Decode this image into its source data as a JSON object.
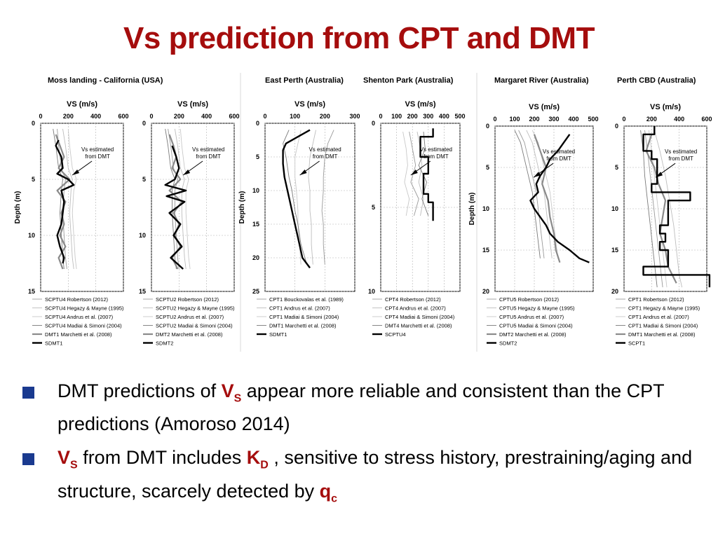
{
  "slide": {
    "title": "Vs prediction from CPT and DMT",
    "bullets": [
      {
        "parts": [
          {
            "text": "DMT predictions of ",
            "style": "normal"
          },
          {
            "text": "V",
            "style": "red",
            "sub": "S"
          },
          {
            "text": " appear more reliable and consistent than the CPT predictions (Amoroso 2014)",
            "style": "normal"
          }
        ]
      },
      {
        "parts": [
          {
            "text": "V",
            "style": "red",
            "sub": "S"
          },
          {
            "text": " from DMT includes ",
            "style": "normal"
          },
          {
            "text": "K",
            "style": "red",
            "sub": "D"
          },
          {
            "text": " , sensitive to stress history, prestraining/aging and structure, scarcely detected by ",
            "style": "normal"
          },
          {
            "text": "q",
            "style": "red",
            "sub": "c"
          }
        ]
      }
    ]
  },
  "colors": {
    "title": "#a50d0d",
    "bullet": "#1a3a8f",
    "highlight": "#a50d0d"
  },
  "chart_data": [
    {
      "type": "line",
      "site": "Moss landing - California (USA)",
      "xlabel": "VS (m/s)",
      "ylabel": "Depth (m)",
      "xlim": [
        0,
        600
      ],
      "xticks": [
        0,
        200,
        400,
        600
      ],
      "ylim": [
        0,
        15
      ],
      "yticks": [
        0,
        5,
        10,
        15
      ],
      "annotation": "Vs estimated from DMT",
      "series": [
        {
          "name": "SCPTU4 Robertson (2012)",
          "depth": [
            0.5,
            2,
            4,
            5,
            6,
            8,
            10,
            12,
            13
          ],
          "vs": [
            120,
            130,
            150,
            180,
            170,
            160,
            170,
            180,
            190
          ]
        },
        {
          "name": "SCPTU4 Hegazy & Mayne (1995)",
          "depth": [
            0.5,
            2,
            4,
            5,
            6,
            8,
            10,
            12,
            13
          ],
          "vs": [
            160,
            180,
            200,
            230,
            220,
            210,
            220,
            230,
            240
          ]
        },
        {
          "name": "SCPTU4 Andrus et al. (2007)",
          "depth": [
            0.5,
            2,
            4,
            5,
            6,
            8,
            10,
            12,
            13
          ],
          "vs": [
            200,
            210,
            230,
            260,
            240,
            230,
            240,
            250,
            260
          ]
        },
        {
          "name": "SCPTU4 Madiai & Simoni (2004)",
          "depth": [
            0.5,
            2,
            4,
            5,
            6,
            8,
            10,
            12,
            13
          ],
          "vs": [
            90,
            110,
            130,
            160,
            150,
            140,
            150,
            160,
            170
          ]
        },
        {
          "name": "DMT1 Marchetti et al. (2008)",
          "depth": [
            1,
            2,
            3,
            4,
            5,
            6,
            7,
            8,
            9,
            10,
            11,
            12,
            13
          ],
          "vs": [
            110,
            140,
            170,
            130,
            210,
            120,
            180,
            150,
            170,
            140,
            180,
            130,
            160
          ]
        },
        {
          "name": "SDMT1",
          "depth": [
            1.5,
            2,
            3,
            4,
            4.5,
            5,
            5.5,
            6,
            7,
            8,
            9,
            10,
            11,
            12,
            12.5
          ],
          "vs": [
            130,
            110,
            150,
            160,
            120,
            200,
            240,
            150,
            170,
            160,
            150,
            120,
            140,
            170,
            160
          ]
        }
      ]
    },
    {
      "type": "line",
      "site": "",
      "xlabel": "VS (m/s)",
      "ylabel": "",
      "xlim": [
        0,
        600
      ],
      "xticks": [
        0,
        200,
        400,
        600
      ],
      "ylim": [
        0,
        15
      ],
      "yticks": [
        0,
        5,
        10,
        15
      ],
      "annotation": "Vs estimated from DMT",
      "series": [
        {
          "name": "SCPTU2 Robertson (2012)",
          "depth": [
            0.5,
            2,
            4,
            5,
            6,
            8,
            10,
            12,
            13
          ],
          "vs": [
            120,
            140,
            160,
            190,
            170,
            170,
            180,
            190,
            200
          ]
        },
        {
          "name": "SCPTU2 Hegazy & Mayne (1995)",
          "depth": [
            0.5,
            2,
            4,
            5,
            6,
            8,
            10,
            12,
            13
          ],
          "vs": [
            170,
            190,
            210,
            240,
            220,
            220,
            230,
            240,
            250
          ]
        },
        {
          "name": "SCPTU2 Andrus et al. (2007)",
          "depth": [
            0.5,
            2,
            4,
            5,
            6,
            8,
            10,
            12,
            13
          ],
          "vs": [
            210,
            220,
            240,
            270,
            250,
            250,
            260,
            270,
            280
          ]
        },
        {
          "name": "SCPTU2 Madiai & Simoni (2004)",
          "depth": [
            0.5,
            2,
            4,
            5,
            6,
            8,
            10,
            12,
            13
          ],
          "vs": [
            100,
            120,
            140,
            170,
            150,
            150,
            160,
            170,
            180
          ]
        },
        {
          "name": "DMT2 Marchetti et al. (2008)",
          "depth": [
            1,
            2,
            3,
            4,
            5,
            6,
            7,
            8,
            9,
            10,
            11,
            12,
            13
          ],
          "vs": [
            130,
            160,
            180,
            150,
            210,
            130,
            220,
            160,
            200,
            170,
            210,
            150,
            190
          ]
        },
        {
          "name": "SDMT2",
          "depth": [
            2,
            3,
            4,
            5,
            5.5,
            6,
            6.5,
            7,
            8,
            9,
            10,
            11,
            12,
            13
          ],
          "vs": [
            150,
            180,
            200,
            170,
            100,
            250,
            110,
            240,
            130,
            210,
            160,
            220,
            140,
            230
          ]
        }
      ]
    },
    {
      "type": "line",
      "site": "East Perth (Australia)",
      "xlabel": "VS (m/s)",
      "ylabel": "Depth (m)",
      "xlim": [
        0,
        300
      ],
      "xticks": [
        0,
        100,
        200,
        300
      ],
      "ylim": [
        0,
        25
      ],
      "yticks": [
        0,
        5,
        10,
        15,
        20,
        25
      ],
      "annotation": "Vs estimated from DMT",
      "series": [
        {
          "name": "CPT1 Bouckovalas et al. (1989)",
          "depth": [
            1,
            3,
            5,
            8,
            10,
            13,
            15,
            18,
            21
          ],
          "vs": [
            230,
            210,
            200,
            195,
            195,
            190,
            195,
            195,
            200
          ]
        },
        {
          "name": "CPT1 Andrus et al. (2007)",
          "depth": [
            1,
            3,
            5,
            8,
            10,
            13,
            15,
            18,
            21
          ],
          "vs": [
            170,
            160,
            150,
            145,
            150,
            150,
            155,
            155,
            160
          ]
        },
        {
          "name": "CPT1 Madiai & Simoni (2004)",
          "depth": [
            1,
            3,
            5,
            8,
            10,
            13,
            15,
            18,
            21
          ],
          "vs": [
            120,
            110,
            100,
            100,
            105,
            110,
            110,
            115,
            120
          ]
        },
        {
          "name": "DMT1 Marchetti et al. (2008)",
          "depth": [
            1,
            3,
            5,
            8,
            10,
            13,
            15,
            18,
            21
          ],
          "vs": [
            80,
            60,
            70,
            80,
            90,
            100,
            110,
            120,
            140
          ]
        },
        {
          "name": "SDMT1",
          "depth": [
            1,
            2,
            3,
            4,
            6,
            8,
            10,
            12,
            14,
            16,
            18,
            20,
            21.5
          ],
          "vs": [
            150,
            110,
            70,
            60,
            60,
            65,
            75,
            85,
            95,
            105,
            115,
            125,
            150
          ]
        }
      ]
    },
    {
      "type": "line",
      "site": "Shenton Park (Australia)",
      "xlabel": "VS (m/s)",
      "ylabel": "",
      "xlim": [
        0,
        500
      ],
      "xticks": [
        0,
        100,
        200,
        300,
        400,
        500
      ],
      "ylim": [
        0,
        10
      ],
      "yticks": [
        0,
        5,
        10
      ],
      "annotation": "Vs estimated from DMT",
      "series": [
        {
          "name": "CPT4 Robertson (2012)",
          "depth": [
            0.5,
            1.5,
            2.5,
            3.5,
            4.5,
            5.5
          ],
          "vs": [
            180,
            200,
            220,
            190,
            240,
            210
          ]
        },
        {
          "name": "CPT4 Andrus et al. (2007)",
          "depth": [
            0.5,
            1.5,
            2.5,
            3.5,
            4.5,
            5.5
          ],
          "vs": [
            230,
            250,
            260,
            240,
            270,
            250
          ]
        },
        {
          "name": "CPT4 Madiai & Simoni (2004)",
          "depth": [
            0.5,
            1.5,
            2.5,
            3.5,
            4.5,
            5.5
          ],
          "vs": [
            140,
            160,
            170,
            150,
            180,
            160
          ]
        },
        {
          "name": "DMT4 Marchetti et al. (2008)",
          "depth": [
            0.5,
            1.5,
            2.5,
            3.5,
            4.5,
            5.5
          ],
          "vs": [
            270,
            280,
            240,
            290,
            260,
            300
          ]
        },
        {
          "name": "SCPTU4",
          "depth": [
            0.3,
            0.8,
            0.8,
            2.0,
            2.0,
            3.0,
            3.0,
            4.2,
            4.2,
            4.7,
            4.7,
            5.8
          ],
          "vs": [
            330,
            330,
            250,
            250,
            300,
            300,
            270,
            270,
            300,
            300,
            330,
            330
          ]
        }
      ]
    },
    {
      "type": "line",
      "site": "Margaret River (Australia)",
      "xlabel": "VS (m/s)",
      "ylabel": "Depth (m)",
      "xlim": [
        0,
        500
      ],
      "xticks": [
        0,
        100,
        200,
        300,
        400,
        500
      ],
      "ylim": [
        0,
        20
      ],
      "yticks": [
        0,
        5,
        10,
        15,
        20
      ],
      "annotation": "Vs estimated from DMT",
      "series": [
        {
          "name": "CPTU5 Robertson (2012)",
          "depth": [
            0.5,
            2,
            4,
            6,
            8,
            10,
            12,
            14,
            16
          ],
          "vs": [
            120,
            150,
            170,
            190,
            210,
            220,
            230,
            240,
            250
          ]
        },
        {
          "name": "CPTU5 Hegazy & Mayne (1995)",
          "depth": [
            0.5,
            2,
            4,
            6,
            8,
            10,
            12,
            14,
            16
          ],
          "vs": [
            160,
            190,
            210,
            230,
            250,
            260,
            270,
            280,
            290
          ]
        },
        {
          "name": "CPTU5 Andrus et al. (2007)",
          "depth": [
            0.5,
            2,
            4,
            6,
            8,
            10,
            12,
            14,
            16
          ],
          "vs": [
            190,
            220,
            240,
            260,
            280,
            290,
            300,
            310,
            320
          ]
        },
        {
          "name": "CPTU5 Madiai & Simoni (2004)",
          "depth": [
            0.5,
            2,
            4,
            6,
            8,
            10,
            12,
            14,
            16
          ],
          "vs": [
            100,
            130,
            150,
            170,
            190,
            200,
            210,
            220,
            230
          ]
        },
        {
          "name": "DMT2 Marchetti et al. (2008)",
          "depth": [
            1,
            3,
            5,
            7,
            9,
            11,
            13,
            15,
            16.5
          ],
          "vs": [
            200,
            230,
            260,
            240,
            270,
            280,
            300,
            310,
            330
          ]
        },
        {
          "name": "SDMT2",
          "depth": [
            1,
            2,
            3,
            4,
            5,
            6,
            7,
            8,
            9,
            10,
            11,
            12,
            13,
            14,
            15,
            16,
            16.5
          ],
          "vs": [
            380,
            350,
            320,
            280,
            260,
            230,
            210,
            220,
            180,
            200,
            230,
            260,
            280,
            320,
            380,
            430,
            480
          ]
        }
      ]
    },
    {
      "type": "line",
      "site": "Perth CBD (Australia)",
      "xlabel": "VS (m/s)",
      "ylabel": "",
      "xlim": [
        0,
        600
      ],
      "xticks": [
        0,
        200,
        400,
        600
      ],
      "ylim": [
        0,
        20
      ],
      "yticks": [
        0,
        5,
        10,
        15,
        20
      ],
      "annotation": "Vs estimated from DMT",
      "series": [
        {
          "name": "CPT1 Robertson (2012)",
          "depth": [
            0.5,
            3,
            6,
            9,
            12,
            15,
            18,
            19.5
          ],
          "vs": [
            150,
            170,
            190,
            210,
            230,
            250,
            270,
            280
          ]
        },
        {
          "name": "CPT1 Hegazy & Mayne (1995)",
          "depth": [
            0.5,
            3,
            6,
            9,
            12,
            15,
            18,
            19.5
          ],
          "vs": [
            220,
            260,
            300,
            330,
            360,
            380,
            400,
            420
          ]
        },
        {
          "name": "CPT1 Andrus et al. (2007)",
          "depth": [
            0.5,
            3,
            6,
            9,
            12,
            15,
            18,
            19.5
          ],
          "vs": [
            180,
            200,
            220,
            240,
            260,
            280,
            300,
            310
          ]
        },
        {
          "name": "CPT1 Madiai & Simoni (2004)",
          "depth": [
            0.5,
            3,
            6,
            9,
            12,
            15,
            18,
            19.5
          ],
          "vs": [
            120,
            140,
            150,
            170,
            190,
            210,
            230,
            240
          ]
        },
        {
          "name": "DMT1 Marchetti et al. (2008)",
          "depth": [
            1,
            3,
            5,
            7,
            9,
            11,
            13,
            15,
            17,
            19
          ],
          "vs": [
            200,
            160,
            220,
            250,
            300,
            280,
            260,
            300,
            320,
            380
          ]
        },
        {
          "name": "SCPT1",
          "depth": [
            0,
            1,
            1,
            3,
            3,
            4,
            4,
            7,
            7,
            8,
            8,
            9,
            9,
            12,
            12,
            13,
            13,
            14,
            14,
            15,
            15,
            17,
            17,
            18,
            18,
            19.5
          ],
          "vs": [
            220,
            220,
            140,
            140,
            200,
            200,
            240,
            240,
            200,
            200,
            480,
            480,
            320,
            320,
            260,
            260,
            300,
            300,
            260,
            260,
            320,
            320,
            140,
            140,
            620,
            620
          ]
        }
      ]
    }
  ]
}
